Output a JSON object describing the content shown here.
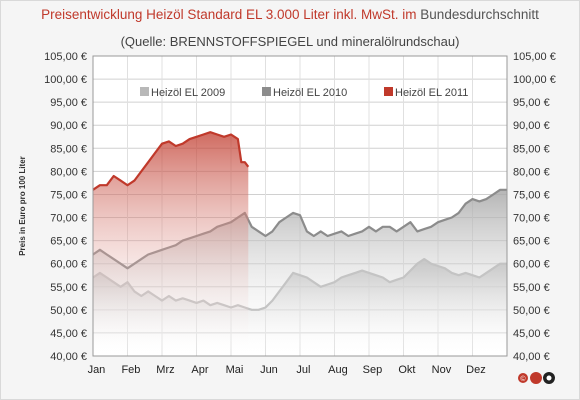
{
  "chart_data": {
    "type": "area",
    "title_parts": [
      "Preisentwicklung  Heizöl Standard  EL 3.000 Liter inkl. MwSt. im ",
      "Bundesdurchschnitt"
    ],
    "subtitle": "(Quelle:  BRENNSTOFFSPIEGEL  und  mineralölrundschau)",
    "ylabel": "Preis in Euro pro 100 Liter",
    "ylim": [
      40,
      105
    ],
    "yticks": [
      "40,00 €",
      "45,00 €",
      "50,00 €",
      "55,00 €",
      "60,00 €",
      "65,00 €",
      "70,00 €",
      "75,00 €",
      "80,00 €",
      "85,00 €",
      "90,00 €",
      "95,00 €",
      "100,00 €",
      "105,00 €"
    ],
    "months": [
      "Jan",
      "Feb",
      "Mrz",
      "Apr",
      "Mai",
      "Jun",
      "Jul",
      "Aug",
      "Sep",
      "Okt",
      "Nov",
      "Dez"
    ],
    "grid": true,
    "legend_position": "top",
    "series": [
      {
        "name": "Heizöl EL 2009",
        "color": "#b8b8b8",
        "x": [
          0,
          0.2,
          0.4,
          0.6,
          0.8,
          1,
          1.2,
          1.4,
          1.6,
          1.8,
          2,
          2.2,
          2.4,
          2.6,
          2.8,
          3,
          3.2,
          3.4,
          3.6,
          3.8,
          4,
          4.2,
          4.4,
          4.6,
          4.8,
          5,
          5.2,
          5.4,
          5.6,
          5.8,
          6,
          6.2,
          6.4,
          6.6,
          6.8,
          7,
          7.2,
          7.4,
          7.6,
          7.8,
          8,
          8.2,
          8.4,
          8.6,
          8.8,
          9,
          9.2,
          9.4,
          9.6,
          9.8,
          10,
          10.2,
          10.4,
          10.6,
          10.8,
          11,
          11.2,
          11.4,
          11.6,
          11.8,
          12
        ],
        "values": [
          57,
          58,
          57,
          56,
          55,
          56,
          54,
          53,
          54,
          53,
          52,
          53,
          52,
          52.5,
          52,
          51.5,
          52,
          51,
          51.5,
          51,
          50.5,
          51,
          50.5,
          50,
          50,
          50.5,
          52,
          54,
          56,
          58,
          57.5,
          57,
          56,
          55,
          55.5,
          56,
          57,
          57.5,
          58,
          58.5,
          58,
          57.5,
          57,
          56,
          56.5,
          57,
          58.5,
          60,
          61,
          60,
          59.5,
          59,
          58,
          57.5,
          58,
          57.5,
          57,
          58,
          59,
          60,
          60
        ]
      },
      {
        "name": "Heizöl EL 2010",
        "color": "#8c8c8c",
        "x": [
          0,
          0.2,
          0.4,
          0.6,
          0.8,
          1,
          1.2,
          1.4,
          1.6,
          1.8,
          2,
          2.2,
          2.4,
          2.6,
          2.8,
          3,
          3.2,
          3.4,
          3.6,
          3.8,
          4,
          4.2,
          4.4,
          4.6,
          4.8,
          5,
          5.2,
          5.4,
          5.6,
          5.8,
          6,
          6.2,
          6.4,
          6.6,
          6.8,
          7,
          7.2,
          7.4,
          7.6,
          7.8,
          8,
          8.2,
          8.4,
          8.6,
          8.8,
          9,
          9.2,
          9.4,
          9.6,
          9.8,
          10,
          10.2,
          10.4,
          10.6,
          10.8,
          11,
          11.2,
          11.4,
          11.6,
          11.8,
          12
        ],
        "values": [
          62,
          63,
          62,
          61,
          60,
          59,
          60,
          61,
          62,
          62.5,
          63,
          63.5,
          64,
          65,
          65.5,
          66,
          66.5,
          67,
          68,
          68.5,
          69,
          70,
          71,
          68,
          67,
          66,
          67,
          69,
          70,
          71,
          70.5,
          67,
          66,
          67,
          66,
          66.5,
          67,
          66,
          66.5,
          67,
          68,
          67,
          68,
          68,
          67,
          68,
          69,
          67,
          67.5,
          68,
          69,
          69.5,
          70,
          71,
          73,
          74,
          73.5,
          74,
          75,
          76,
          76
        ]
      },
      {
        "name": "Heizöl EL 2011",
        "color": "#c0392b",
        "x": [
          0,
          0.2,
          0.4,
          0.6,
          0.8,
          1,
          1.2,
          1.4,
          1.6,
          1.8,
          2,
          2.2,
          2.4,
          2.6,
          2.8,
          3,
          3.2,
          3.4,
          3.6,
          3.8,
          4,
          4.2,
          4.3,
          4.4,
          4.5
        ],
        "values": [
          76,
          77,
          77,
          79,
          78,
          77,
          78,
          80,
          82,
          84,
          86,
          86.5,
          85.5,
          86,
          87,
          87.5,
          88,
          88.5,
          88,
          87.5,
          88,
          87,
          82,
          82,
          81
        ]
      }
    ]
  }
}
